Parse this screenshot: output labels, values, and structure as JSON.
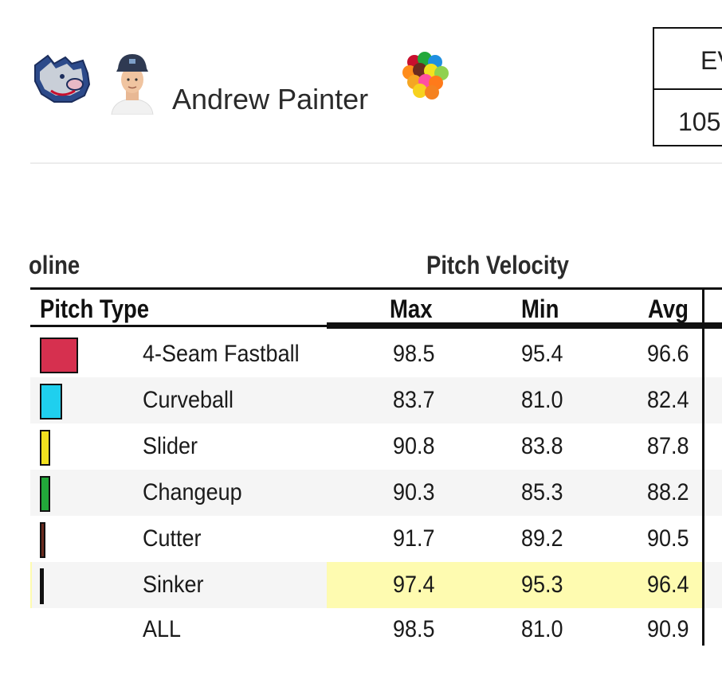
{
  "player": {
    "name": "Andrew Painter"
  },
  "stat_box": {
    "header": "EV",
    "value": "105"
  },
  "table": {
    "group_left": "oline",
    "group_right": "Pitch Velocity",
    "columns": {
      "type": "Pitch Type",
      "max": "Max",
      "min": "Min",
      "avg": "Avg"
    },
    "rows": [
      {
        "type": "4-Seam Fastball",
        "max": "98.5",
        "min": "95.4",
        "avg": "96.6",
        "color": "#d6304f"
      },
      {
        "type": "Curveball",
        "max": "83.7",
        "min": "81.0",
        "avg": "82.4",
        "color": "#1fcfee"
      },
      {
        "type": "Slider",
        "max": "90.8",
        "min": "83.8",
        "avg": "87.8",
        "color": "#f2e11f"
      },
      {
        "type": "Changeup",
        "max": "90.3",
        "min": "85.3",
        "avg": "88.2",
        "color": "#22a83a"
      },
      {
        "type": "Cutter",
        "max": "91.7",
        "min": "89.2",
        "avg": "90.5",
        "color": "#6b2b1f"
      },
      {
        "type": "Sinker",
        "max": "97.4",
        "min": "95.3",
        "avg": "96.4",
        "color": "#ffcc33"
      },
      {
        "type": "ALL",
        "max": "98.5",
        "min": "81.0",
        "avg": "90.9"
      }
    ],
    "highlight_color": "#fefbb0"
  }
}
